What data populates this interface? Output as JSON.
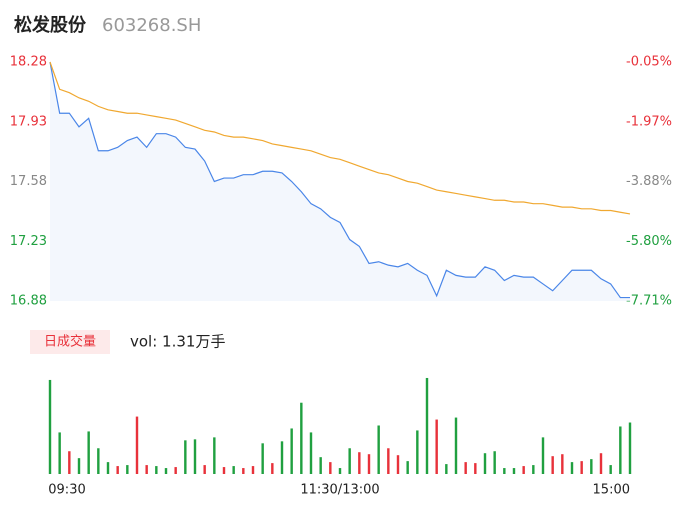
{
  "header": {
    "name": "松发股份",
    "code": "603268.SH"
  },
  "chart_data": {
    "type": "line",
    "x": [
      "09:30",
      null,
      null,
      null,
      null,
      null,
      null,
      null,
      null,
      null,
      null,
      null,
      null,
      null,
      null,
      null,
      null,
      null,
      null,
      null,
      null,
      null,
      null,
      null,
      null,
      null,
      null,
      null,
      null,
      null,
      "11:30/13:00",
      null,
      null,
      null,
      null,
      null,
      null,
      null,
      null,
      null,
      null,
      null,
      null,
      null,
      null,
      null,
      null,
      null,
      null,
      null,
      null,
      null,
      null,
      null,
      null,
      null,
      null,
      null,
      null,
      null,
      "15:00"
    ],
    "series": [
      {
        "color": "#4a86e8",
        "values": [
          18.28,
          17.98,
          17.98,
          17.9,
          17.95,
          17.76,
          17.76,
          17.78,
          17.82,
          17.84,
          17.78,
          17.86,
          17.86,
          17.84,
          17.78,
          17.77,
          17.7,
          17.58,
          17.6,
          17.6,
          17.62,
          17.62,
          17.64,
          17.64,
          17.63,
          17.58,
          17.52,
          17.45,
          17.42,
          17.37,
          17.34,
          17.24,
          17.2,
          17.1,
          17.11,
          17.09,
          17.08,
          17.1,
          17.06,
          17.03,
          16.91,
          17.06,
          17.03,
          17.02,
          17.02,
          17.08,
          17.06,
          17.0,
          17.03,
          17.02,
          17.02,
          16.98,
          16.94,
          17.0,
          17.06,
          17.06,
          17.06,
          17.01,
          16.98,
          16.9,
          16.9
        ]
      },
      {
        "color": "#f0a830",
        "values": [
          18.28,
          18.12,
          18.1,
          18.07,
          18.05,
          18.02,
          18.0,
          17.99,
          17.98,
          17.98,
          17.97,
          17.96,
          17.95,
          17.94,
          17.92,
          17.9,
          17.88,
          17.87,
          17.85,
          17.84,
          17.84,
          17.83,
          17.82,
          17.8,
          17.79,
          17.78,
          17.77,
          17.76,
          17.74,
          17.72,
          17.71,
          17.69,
          17.67,
          17.65,
          17.63,
          17.62,
          17.6,
          17.58,
          17.57,
          17.55,
          17.53,
          17.52,
          17.51,
          17.5,
          17.49,
          17.48,
          17.47,
          17.47,
          17.46,
          17.46,
          17.45,
          17.45,
          17.44,
          17.43,
          17.43,
          17.42,
          17.42,
          17.41,
          17.41,
          17.4,
          17.39
        ]
      }
    ],
    "ylim": [
      16.88,
      18.28
    ],
    "yticks": [
      16.88,
      17.23,
      17.58,
      17.93,
      18.28
    ],
    "ytick_colors": [
      "#20a040",
      "#20a040",
      "#888888",
      "#e8313a",
      "#e8313a"
    ],
    "y2lim": [
      -7.71,
      -0.05
    ],
    "y2ticks": [
      {
        "value": -7.71,
        "label": "-7.71%"
      },
      {
        "value": -5.8,
        "label": "-5.80%"
      },
      {
        "value": -3.88,
        "label": "-3.88%"
      },
      {
        "value": -1.97,
        "label": "-1.97%"
      },
      {
        "value": -0.05,
        "label": "-0.05%"
      }
    ],
    "volume": {
      "tab": "日成交量",
      "label": "vol: 1.31万手",
      "ylim": [
        0,
        1000
      ],
      "values": [
        950,
        420,
        230,
        160,
        430,
        260,
        120,
        80,
        90,
        580,
        90,
        80,
        60,
        70,
        340,
        350,
        90,
        370,
        70,
        80,
        60,
        80,
        310,
        110,
        330,
        460,
        720,
        420,
        170,
        120,
        60,
        260,
        220,
        200,
        490,
        260,
        190,
        130,
        440,
        970,
        550,
        100,
        570,
        120,
        110,
        210,
        230,
        60,
        60,
        80,
        90,
        370,
        180,
        200,
        120,
        130,
        150,
        210,
        90,
        480,
        520
      ],
      "colors": [
        "#20a040",
        "#20a040",
        "#e8313a",
        "#20a040",
        "#20a040",
        "#20a040",
        "#20a040",
        "#e8313a",
        "#20a040",
        "#e8313a",
        "#e8313a",
        "#20a040",
        "#20a040",
        "#e8313a",
        "#20a040",
        "#20a040",
        "#e8313a",
        "#20a040",
        "#e8313a",
        "#20a040",
        "#e8313a",
        "#e8313a",
        "#20a040",
        "#e8313a",
        "#20a040",
        "#20a040",
        "#20a040",
        "#20a040",
        "#20a040",
        "#e8313a",
        "#20a040",
        "#20a040",
        "#e8313a",
        "#e8313a",
        "#20a040",
        "#e8313a",
        "#e8313a",
        "#20a040",
        "#20a040",
        "#20a040",
        "#e8313a",
        "#20a040",
        "#20a040",
        "#e8313a",
        "#e8313a",
        "#20a040",
        "#20a040",
        "#20a040",
        "#20a040",
        "#e8313a",
        "#20a040",
        "#20a040",
        "#e8313a",
        "#e8313a",
        "#20a040",
        "#e8313a",
        "#20a040",
        "#e8313a",
        "#20a040",
        "#20a040",
        "#20a040"
      ]
    }
  }
}
